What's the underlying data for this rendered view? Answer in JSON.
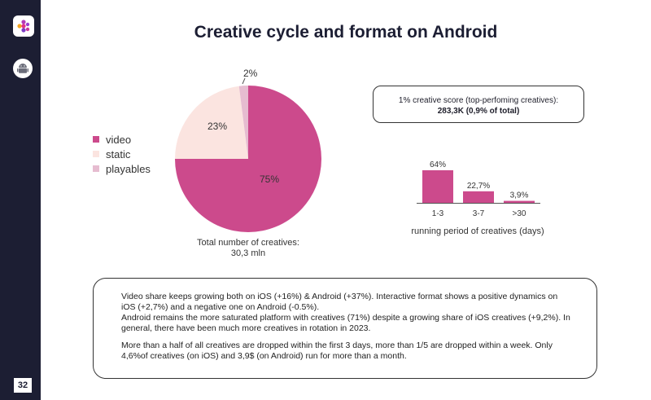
{
  "title": "Creative cycle and format on Android",
  "page_number": "32",
  "colors": {
    "sidebar": "#1c1e33",
    "video": "#cc4a8c",
    "static": "#fbe4e0",
    "playables": "#e6bcd0"
  },
  "icons": {
    "logo": "brand-logo-icon",
    "platform": "android-icon"
  },
  "chart_data": [
    {
      "type": "pie",
      "title": "",
      "slices": [
        {
          "label": "video",
          "value": 75,
          "display": "75%"
        },
        {
          "label": "static",
          "value": 23,
          "display": "23%"
        },
        {
          "label": "playables",
          "value": 2,
          "display": "2%"
        }
      ],
      "legend": [
        "video",
        "static",
        "playables"
      ],
      "legend_position": "left"
    },
    {
      "type": "bar",
      "categories": [
        "1-3",
        "3-7",
        ">30"
      ],
      "values": [
        64,
        22.7,
        3.9
      ],
      "data_labels": [
        "64%",
        "22,7%",
        "3,9%"
      ],
      "xlabel": "running period of creatives (days)",
      "ylabel": "",
      "ylim": [
        0,
        64
      ]
    }
  ],
  "total_creatives": {
    "label": "Total number of creatives:",
    "value": "30,3 mln"
  },
  "score_box": {
    "line1": "1% creative score (top-perfoming creatives):",
    "line2": "283,3K (0,9% of total)"
  },
  "summary": {
    "paragraph1": "Video share keeps growing both on iOS (+16%) & Android (+37%). Interactive format shows a positive dynamics on iOS (+2,7%) and a negative one on Android (-0.5%).",
    "paragraph2": "Android remains the more saturated platform with creatives (71%) despite a growing share of iOS creatives (+9,2%). In general, there have been much more creatives in rotation in 2023.",
    "paragraph3": "More than a half of all creatives  are dropped within the first 3 days, more than 1/5 are dropped within a week. Only 4,6%of creatives (on iOS) and 3,9$ (on Android) run for more than a month."
  }
}
